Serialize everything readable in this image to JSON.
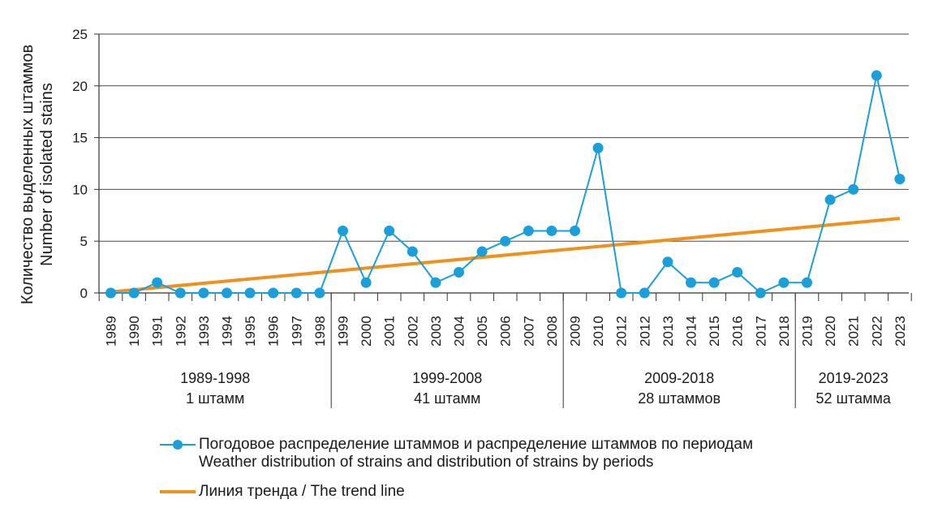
{
  "chart_data": {
    "type": "line",
    "ylabel_ru": "Количество выделенных штаммов",
    "ylabel_en": "Number of isolated stains",
    "ylim": [
      0,
      25
    ],
    "yticks": [
      0,
      5,
      10,
      15,
      20,
      25
    ],
    "categories": [
      "1989",
      "1990",
      "1991",
      "1992",
      "1993",
      "1994",
      "1995",
      "1996",
      "1997",
      "1998",
      "1999",
      "2000",
      "2001",
      "2002",
      "2003",
      "2004",
      "2005",
      "2006",
      "2007",
      "2008",
      "2009",
      "2010",
      "2012",
      "2012",
      "2013",
      "2014",
      "2015",
      "2016",
      "2017",
      "2018",
      "2019",
      "2020",
      "2021",
      "2022",
      "2023"
    ],
    "series": [
      {
        "name": "Погодовое распределение штаммов и распределение штаммов по периодам / Weather distribution of strains and distribution of strains by periods",
        "color": "#1a9fdb",
        "values": [
          0,
          0,
          1,
          0,
          0,
          0,
          0,
          0,
          0,
          0,
          6,
          1,
          6,
          4,
          1,
          2,
          4,
          5,
          6,
          6,
          6,
          14,
          0,
          0,
          3,
          1,
          1,
          2,
          0,
          1,
          1,
          9,
          10,
          21,
          11
        ]
      },
      {
        "name": "Линия тренда / The trend line",
        "color": "#f0911e",
        "values_at_ends": [
          0.1,
          7.2
        ]
      }
    ],
    "periods": [
      {
        "range": "1989-1998",
        "count": "1 штамм"
      },
      {
        "range": "1999-2008",
        "count": "41 штамм"
      },
      {
        "range": "2009-2018",
        "count": "28 штаммов"
      },
      {
        "range": "2019-2023",
        "count": "52 штамма"
      }
    ]
  },
  "legend": {
    "series_line1": "Погодовое распределение штаммов и распределение штаммов по периодам",
    "series_line2": "Weather distribution of strains and distribution of strains by periods",
    "trend": "Линия тренда / The trend line"
  }
}
